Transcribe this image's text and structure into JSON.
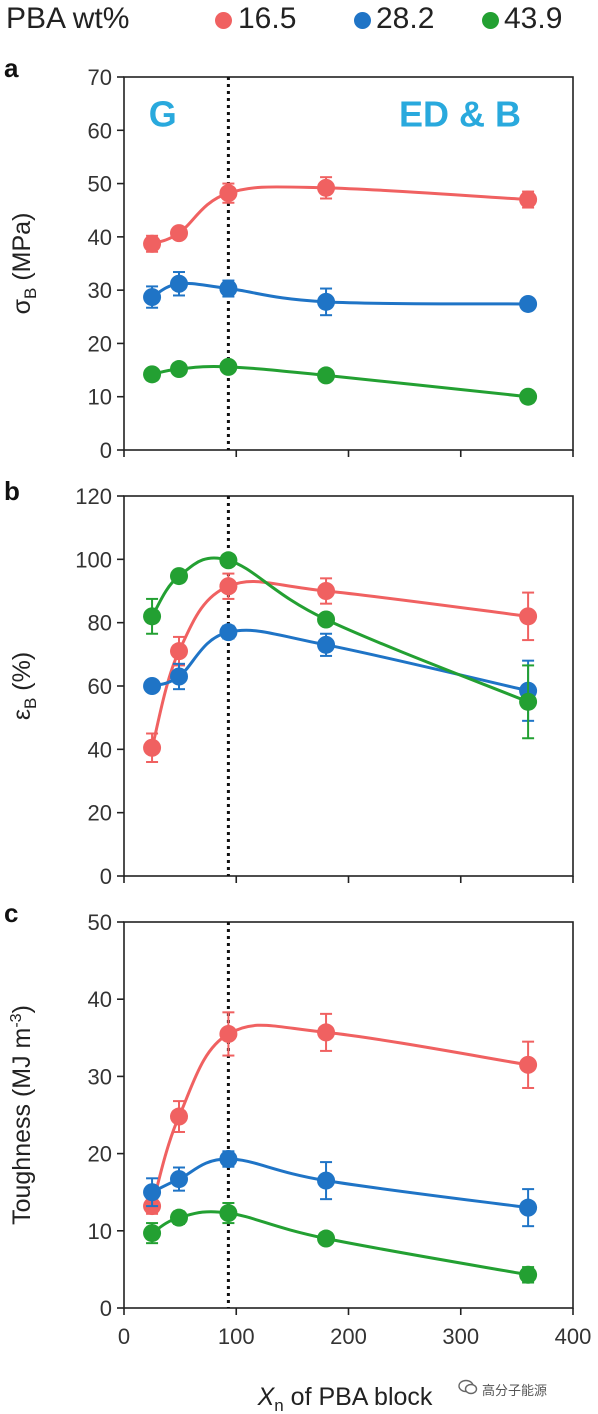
{
  "legend": {
    "title": "PBA wt%",
    "items": [
      {
        "label": "16.5",
        "color": "#f06161"
      },
      {
        "label": "28.2",
        "color": "#1f74c6"
      },
      {
        "label": "43.9",
        "color": "#23a032"
      }
    ]
  },
  "watermark": "高分子能源",
  "xlabel": {
    "var": "X",
    "sub": "n",
    "rest": " of PBA block"
  },
  "chart_data": [
    {
      "type": "line",
      "panel": "a",
      "ylabel": {
        "main": "σ",
        "sub": "B",
        "rest": " (MPa)"
      },
      "ylim": [
        0,
        70
      ],
      "yticks": [
        0,
        10,
        20,
        30,
        40,
        50,
        60,
        70
      ],
      "xlim": [
        0,
        400
      ],
      "xticks": [
        0,
        100,
        200,
        300,
        400
      ],
      "show_xtick_labels": false,
      "vline_x": 93,
      "region_labels": [
        {
          "text": "G",
          "x": 22,
          "y": 63
        },
        {
          "text": "ED & B",
          "x": 245,
          "y": 63
        }
      ],
      "series": [
        {
          "name": "16.5",
          "color": "#f06161",
          "x": [
            25,
            49,
            93,
            180,
            360
          ],
          "y": [
            38.7,
            40.7,
            48.2,
            49.2,
            47.0
          ],
          "err": [
            1.5,
            1.0,
            1.8,
            2.0,
            1.5
          ]
        },
        {
          "name": "28.2",
          "color": "#1f74c6",
          "x": [
            25,
            49,
            93,
            180,
            360
          ],
          "y": [
            28.7,
            31.2,
            30.3,
            27.8,
            27.4
          ],
          "err": [
            2.0,
            2.2,
            1.5,
            2.5,
            1.0
          ]
        },
        {
          "name": "43.9",
          "color": "#23a032",
          "x": [
            25,
            49,
            93,
            180,
            360
          ],
          "y": [
            14.2,
            15.2,
            15.6,
            14.0,
            10.0
          ],
          "err": [
            1.0,
            1.0,
            1.0,
            0.8,
            0.8
          ]
        }
      ]
    },
    {
      "type": "line",
      "panel": "b",
      "ylabel": {
        "main": "ε",
        "sub": "B",
        "rest": " (%)"
      },
      "ylim": [
        0,
        120
      ],
      "yticks": [
        0,
        20,
        40,
        60,
        80,
        100,
        120
      ],
      "xlim": [
        0,
        400
      ],
      "xticks": [
        0,
        100,
        200,
        300,
        400
      ],
      "show_xtick_labels": false,
      "vline_x": 93,
      "region_labels": [],
      "series": [
        {
          "name": "16.5",
          "color": "#f06161",
          "x": [
            25,
            49,
            93,
            180,
            360
          ],
          "y": [
            40.5,
            71.0,
            91.5,
            90.0,
            82.0
          ],
          "err": [
            4.5,
            4.5,
            4.0,
            4.0,
            7.5
          ]
        },
        {
          "name": "28.2",
          "color": "#1f74c6",
          "x": [
            25,
            49,
            93,
            180,
            360
          ],
          "y": [
            60.0,
            63.0,
            77.0,
            73.0,
            58.5
          ],
          "err": [
            1.5,
            4.0,
            2.0,
            3.5,
            9.5
          ]
        },
        {
          "name": "43.9",
          "color": "#23a032",
          "x": [
            25,
            49,
            93,
            180,
            360
          ],
          "y": [
            82.0,
            94.7,
            99.7,
            81.0,
            55.0
          ],
          "err": [
            5.5,
            1.5,
            1.5,
            1.5,
            11.5
          ]
        }
      ]
    },
    {
      "type": "line",
      "panel": "c",
      "ylabel": {
        "main": "Toughness (MJ m",
        "sup": "-3",
        "rest": ")"
      },
      "ylim": [
        0,
        50
      ],
      "yticks": [
        0,
        10,
        20,
        30,
        40,
        50
      ],
      "xlim": [
        0,
        400
      ],
      "xticks": [
        0,
        100,
        200,
        300,
        400
      ],
      "show_xtick_labels": true,
      "vline_x": 93,
      "region_labels": [],
      "series": [
        {
          "name": "16.5",
          "color": "#f06161",
          "x": [
            25,
            49,
            93,
            180,
            360
          ],
          "y": [
            13.2,
            24.8,
            35.5,
            35.7,
            31.5
          ],
          "err": [
            1.0,
            2.0,
            2.8,
            2.4,
            3.0
          ]
        },
        {
          "name": "28.2",
          "color": "#1f74c6",
          "x": [
            25,
            49,
            93,
            180,
            360
          ],
          "y": [
            15.0,
            16.7,
            19.3,
            16.5,
            13.0
          ],
          "err": [
            1.8,
            1.5,
            1.0,
            2.4,
            2.4
          ]
        },
        {
          "name": "43.9",
          "color": "#23a032",
          "x": [
            25,
            49,
            93,
            180,
            360
          ],
          "y": [
            9.7,
            11.7,
            12.3,
            9.0,
            4.3
          ],
          "err": [
            1.3,
            0.8,
            1.3,
            0.6,
            1.0
          ]
        }
      ]
    }
  ]
}
